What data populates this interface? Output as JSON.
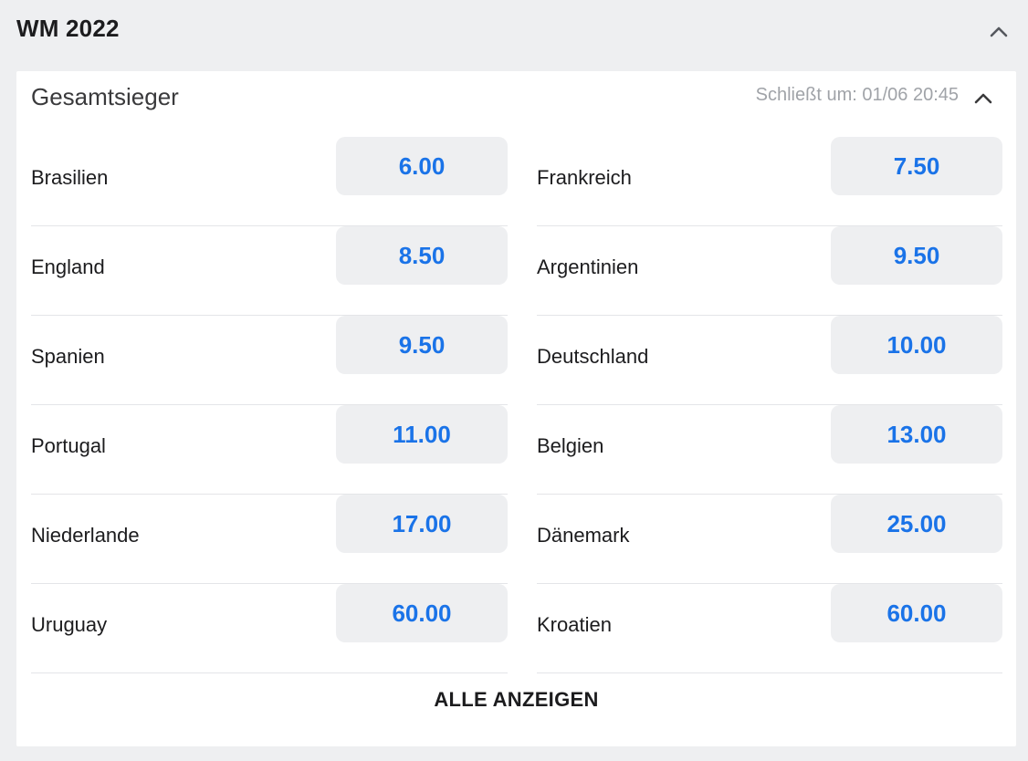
{
  "header": {
    "title": "WM 2022",
    "collapse_icon": "chevron-up-icon"
  },
  "market": {
    "title": "Gesamtsieger",
    "closes_text": "Schließt um: 01/06 20:45",
    "collapse_icon": "chevron-up-icon",
    "left_column": [
      {
        "team": "Brasilien",
        "odd": "6.00"
      },
      {
        "team": "England",
        "odd": "8.50"
      },
      {
        "team": "Spanien",
        "odd": "9.50"
      },
      {
        "team": "Portugal",
        "odd": "11.00"
      },
      {
        "team": "Niederlande",
        "odd": "17.00"
      },
      {
        "team": "Uruguay",
        "odd": "60.00"
      }
    ],
    "right_column": [
      {
        "team": "Frankreich",
        "odd": "7.50"
      },
      {
        "team": "Argentinien",
        "odd": "9.50"
      },
      {
        "team": "Deutschland",
        "odd": "10.00"
      },
      {
        "team": "Belgien",
        "odd": "13.00"
      },
      {
        "team": "Dänemark",
        "odd": "25.00"
      },
      {
        "team": "Kroatien",
        "odd": "60.00"
      }
    ],
    "show_all_label": "ALLE ANZEIGEN"
  },
  "colors": {
    "odd_text": "#1a73e8",
    "odd_background": "#eeeff1",
    "page_background": "#eeeff1"
  }
}
